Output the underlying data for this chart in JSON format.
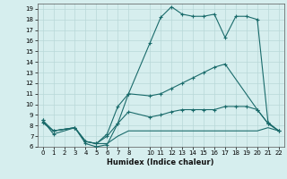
{
  "xlabel": "Humidex (Indice chaleur)",
  "background_color": "#d6eeee",
  "grid_color": "#b8d8d8",
  "line_color": "#1a6b6b",
  "xlim": [
    -0.5,
    22.5
  ],
  "ylim": [
    6,
    19.5
  ],
  "xticks": [
    0,
    1,
    2,
    3,
    4,
    5,
    6,
    7,
    8,
    10,
    11,
    12,
    13,
    14,
    15,
    16,
    17,
    18,
    19,
    20,
    21,
    22
  ],
  "yticks": [
    6,
    7,
    8,
    9,
    10,
    11,
    12,
    13,
    14,
    15,
    16,
    17,
    18,
    19
  ],
  "lines": [
    {
      "x": [
        0,
        1,
        3,
        4,
        5,
        6,
        7,
        8,
        10,
        11,
        12,
        13,
        14,
        15,
        16,
        17,
        18,
        19,
        20,
        21,
        22
      ],
      "y": [
        8.5,
        7.2,
        7.8,
        6.3,
        6.0,
        6.2,
        8.2,
        11.0,
        15.8,
        18.2,
        19.2,
        18.5,
        18.3,
        18.3,
        18.5,
        16.3,
        18.3,
        18.3,
        18.0,
        8.3,
        7.5
      ],
      "marker": "+"
    },
    {
      "x": [
        0,
        1,
        3,
        4,
        5,
        6,
        7,
        8,
        10,
        11,
        12,
        13,
        14,
        15,
        16,
        17,
        20,
        21,
        22
      ],
      "y": [
        8.5,
        7.5,
        7.8,
        6.5,
        6.3,
        7.2,
        9.8,
        11.0,
        10.8,
        11.0,
        11.5,
        12.0,
        12.5,
        13.0,
        13.5,
        13.8,
        9.5,
        8.2,
        7.5
      ],
      "marker": "+"
    },
    {
      "x": [
        0,
        1,
        3,
        4,
        5,
        6,
        7,
        8,
        10,
        11,
        12,
        13,
        14,
        15,
        16,
        17,
        18,
        19,
        20,
        21,
        22
      ],
      "y": [
        8.3,
        7.5,
        7.8,
        6.5,
        6.3,
        7.0,
        8.2,
        9.3,
        8.8,
        9.0,
        9.3,
        9.5,
        9.5,
        9.5,
        9.5,
        9.8,
        9.8,
        9.8,
        9.5,
        8.2,
        7.5
      ],
      "marker": "+"
    },
    {
      "x": [
        0,
        1,
        3,
        4,
        5,
        6,
        7,
        8,
        10,
        11,
        12,
        13,
        14,
        15,
        16,
        17,
        18,
        19,
        20,
        21,
        22
      ],
      "y": [
        8.3,
        7.5,
        7.8,
        6.5,
        6.3,
        6.3,
        7.0,
        7.5,
        7.5,
        7.5,
        7.5,
        7.5,
        7.5,
        7.5,
        7.5,
        7.5,
        7.5,
        7.5,
        7.5,
        7.8,
        7.5
      ],
      "marker": null
    }
  ]
}
